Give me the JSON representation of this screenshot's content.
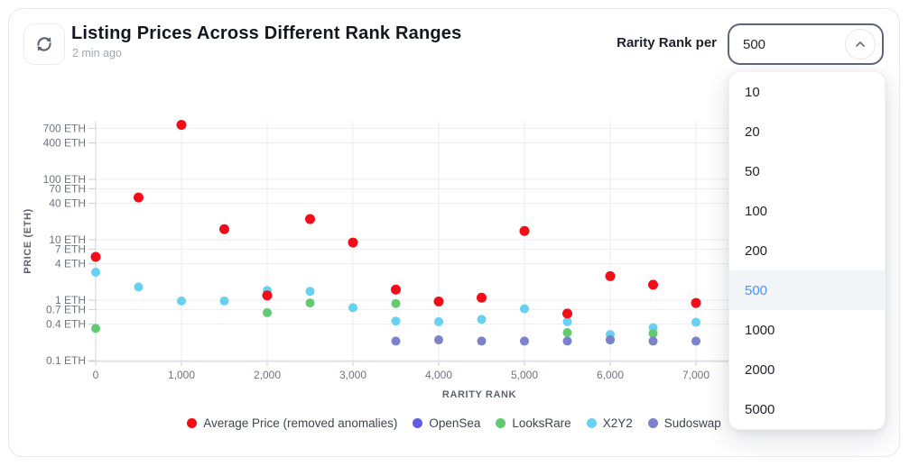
{
  "header": {
    "title": "Listing Prices Across Different Rank Ranges",
    "updated": "2 min ago",
    "control_label": "Rarity Rank per",
    "selected_value": "500"
  },
  "dropdown": {
    "options": [
      "10",
      "20",
      "50",
      "100",
      "200",
      "500",
      "1000",
      "2000",
      "5000"
    ],
    "selected": "500"
  },
  "icons": {
    "refresh": "refresh-icon",
    "select_chevron": "chevron-up-icon"
  },
  "colors": {
    "accent_blue": "#4e90f6",
    "selected_row_bg": "#f2f5f8",
    "select_border": "#5d6678",
    "grid": "#ededf2",
    "axis": "#d4d6dd",
    "tick_label": "#6e7380"
  },
  "chart_data": {
    "type": "scatter",
    "title": "Listing Prices Across Different Rank Ranges",
    "xlabel": "RARITY RANK",
    "ylabel": "PRICE (ETH)",
    "y_scale": "log",
    "grid": true,
    "legend_position": "bottom",
    "x_range": [
      0,
      8900
    ],
    "y_range": [
      0.1,
      900
    ],
    "x_ticks": [
      0,
      1000,
      2000,
      3000,
      4000,
      5000,
      6000,
      7000
    ],
    "x_tick_labels": [
      "0",
      "1,000",
      "2,000",
      "3,000",
      "4,000",
      "5,000",
      "6,000",
      "7,000"
    ],
    "y_ticks": [
      700,
      400,
      100,
      70,
      40,
      10,
      7,
      4,
      1,
      0.7,
      0.4,
      0.1
    ],
    "y_tick_labels": [
      "700 ETH",
      "400 ETH",
      "100 ETH",
      "70 ETH",
      "40 ETH",
      "10 ETH",
      "7 ETH",
      "4 ETH",
      "1 ETH",
      "0.7 ETH",
      "0.4 ETH",
      "0.1 ETH"
    ],
    "series": [
      {
        "name": "Average Price (removed anomalies)",
        "color": "#f20d18",
        "points": [
          [
            0,
            5.2
          ],
          [
            500,
            50
          ],
          [
            1000,
            800
          ],
          [
            1500,
            15
          ],
          [
            2000,
            1.2
          ],
          [
            2500,
            22
          ],
          [
            3000,
            9
          ],
          [
            3500,
            1.5
          ],
          [
            4000,
            0.95
          ],
          [
            4500,
            1.1
          ],
          [
            5000,
            14
          ],
          [
            5500,
            0.6
          ],
          [
            6000,
            2.5
          ],
          [
            6500,
            1.8
          ],
          [
            7000,
            0.9
          ]
        ]
      },
      {
        "name": "OpenSea",
        "color": "#5f5be6",
        "points": []
      },
      {
        "name": "LooksRare",
        "color": "#62ca70",
        "points": [
          [
            0,
            0.34
          ],
          [
            2000,
            0.62
          ],
          [
            2500,
            0.9
          ],
          [
            3500,
            0.88
          ],
          [
            5500,
            0.29
          ],
          [
            6000,
            0.22
          ],
          [
            6500,
            0.28
          ]
        ]
      },
      {
        "name": "X2Y2",
        "color": "#67d1f1",
        "points": [
          [
            0,
            2.9
          ],
          [
            500,
            1.65
          ],
          [
            1000,
            0.97
          ],
          [
            1500,
            0.97
          ],
          [
            2000,
            1.45
          ],
          [
            2500,
            1.4
          ],
          [
            3000,
            0.75
          ],
          [
            3500,
            0.45
          ],
          [
            4000,
            0.44
          ],
          [
            4500,
            0.48
          ],
          [
            5000,
            0.72
          ],
          [
            5500,
            0.44
          ],
          [
            6000,
            0.27
          ],
          [
            6500,
            0.35
          ],
          [
            7000,
            0.43
          ]
        ]
      },
      {
        "name": "Sudoswap",
        "color": "#7c81cc",
        "points": [
          [
            3500,
            0.21
          ],
          [
            4000,
            0.22
          ],
          [
            4500,
            0.21
          ],
          [
            5000,
            0.21
          ],
          [
            5500,
            0.21
          ],
          [
            6000,
            0.22
          ],
          [
            6500,
            0.21
          ],
          [
            7000,
            0.21
          ]
        ]
      }
    ],
    "draw_order": [
      1,
      3,
      2,
      4,
      0
    ]
  }
}
